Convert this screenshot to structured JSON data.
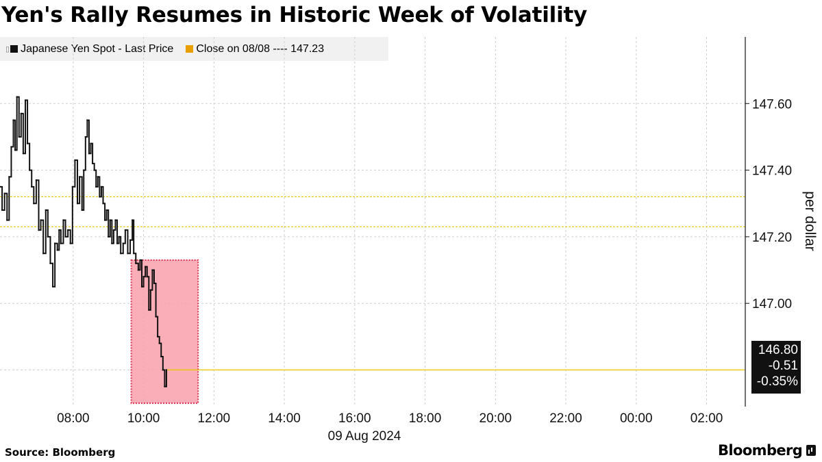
{
  "title": "Yen's Rally Resumes in Historic Week of Volatility",
  "legend": {
    "series_label": "Japanese Yen Spot - Last Price",
    "close_label": "Close on 08/08 ---- 147.23"
  },
  "source": "Source: Bloomberg",
  "brand": "Bloomberg",
  "price_box": {
    "last": "146.80",
    "change": "-0.51",
    "pct": "-0.35%"
  },
  "chart_data": {
    "type": "line",
    "title": "Yen's Rally Resumes in Historic Week of Volatility",
    "ylabel": "per dollar",
    "xlabel": "09 Aug 2024",
    "x_ticks": [
      "08:00",
      "10:00",
      "12:00",
      "14:00",
      "16:00",
      "18:00",
      "20:00",
      "22:00",
      "00:00",
      "02:00"
    ],
    "x_tick_hours": [
      8,
      10,
      12,
      14,
      16,
      18,
      20,
      22,
      24,
      26
    ],
    "x_range_hours": [
      5.92,
      27.1
    ],
    "y_ticks": [
      "147.60",
      "147.40",
      "147.20",
      "147.00"
    ],
    "y_tick_values": [
      147.6,
      147.4,
      147.2,
      147.0
    ],
    "ylim": [
      146.69,
      147.8
    ],
    "grid": true,
    "close_line": 147.23,
    "reference_line": 147.32,
    "last_line": 146.8,
    "highlight": {
      "x_start_hour": 9.65,
      "x_end_hour": 11.55,
      "y_low": 146.7,
      "y_high": 147.13
    },
    "series": [
      {
        "name": "Japanese Yen Spot - Last Price",
        "x_hours": [
          5.92,
          5.98,
          6.05,
          6.12,
          6.18,
          6.24,
          6.3,
          6.35,
          6.4,
          6.46,
          6.52,
          6.58,
          6.64,
          6.7,
          6.76,
          6.82,
          6.88,
          6.95,
          7.02,
          7.08,
          7.15,
          7.22,
          7.28,
          7.35,
          7.42,
          7.48,
          7.55,
          7.6,
          7.65,
          7.72,
          7.78,
          7.85,
          7.92,
          7.98,
          8.05,
          8.12,
          8.18,
          8.25,
          8.3,
          8.35,
          8.4,
          8.45,
          8.5,
          8.55,
          8.6,
          8.65,
          8.7,
          8.75,
          8.8,
          8.85,
          8.9,
          8.95,
          9.0,
          9.05,
          9.1,
          9.15,
          9.2,
          9.25,
          9.3,
          9.35,
          9.42,
          9.48,
          9.55,
          9.62,
          9.68,
          9.72,
          9.78,
          9.85,
          9.9,
          9.95,
          10.0,
          10.05,
          10.1,
          10.15,
          10.2,
          10.25,
          10.3,
          10.35,
          10.4,
          10.45,
          10.5,
          10.55,
          10.6,
          10.65
        ],
        "values": [
          147.35,
          147.28,
          147.33,
          147.25,
          147.38,
          147.47,
          147.55,
          147.46,
          147.62,
          147.5,
          147.57,
          147.45,
          147.61,
          147.48,
          147.4,
          147.35,
          147.3,
          147.37,
          147.22,
          147.25,
          147.15,
          147.28,
          147.2,
          147.12,
          147.05,
          147.18,
          147.16,
          147.22,
          147.18,
          147.25,
          147.2,
          147.22,
          147.18,
          147.35,
          147.43,
          147.3,
          147.38,
          147.28,
          147.4,
          147.5,
          147.55,
          147.45,
          147.48,
          147.42,
          147.4,
          147.35,
          147.38,
          147.32,
          147.35,
          147.3,
          147.25,
          147.28,
          147.2,
          147.25,
          147.18,
          147.22,
          147.25,
          147.18,
          147.2,
          147.15,
          147.18,
          147.22,
          147.15,
          147.19,
          147.25,
          147.15,
          147.12,
          147.1,
          147.13,
          147.05,
          147.08,
          147.11,
          147.08,
          146.98,
          147.04,
          147.1,
          147.06,
          146.96,
          146.9,
          146.88,
          146.84,
          146.8,
          146.75,
          146.8
        ]
      }
    ]
  }
}
